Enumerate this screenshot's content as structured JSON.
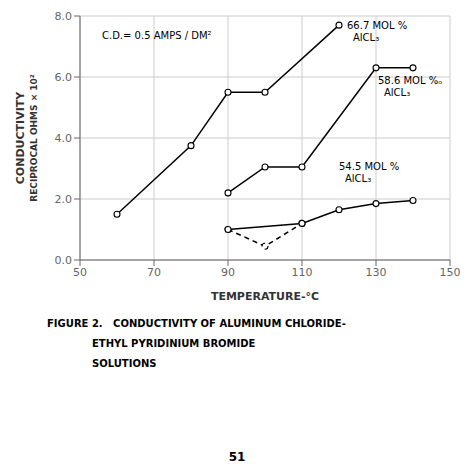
{
  "chart_data": {
    "type": "line",
    "x_label": "TEMPERATURE-°C",
    "y_label": [
      "CONDUCTIVITY",
      "RECIPROCAL OHMS × 10²"
    ],
    "annotations": [
      "C.D.= 0.5 AMPS / DM²"
    ],
    "caption": [
      "FIGURE 2.   CONDUCTIVITY OF ALUMINUM CHLORIDE-",
      "ETHYL PYRIDINIUM BROMIDE",
      "SOLUTIONS"
    ],
    "page_number": "51",
    "xlim": [
      50,
      150
    ],
    "ylim": [
      0.0,
      8.0
    ],
    "xticks": [
      50,
      70,
      90,
      110,
      130,
      150
    ],
    "yticks": [
      {
        "value": 0.0,
        "label": "0.0"
      },
      {
        "value": 2.0,
        "label": "2.0"
      },
      {
        "value": 4.0,
        "label": "4.0"
      },
      {
        "value": 6.0,
        "label": "6.0"
      },
      {
        "value": 8.0,
        "label": "8.0"
      }
    ],
    "grid": true,
    "series": [
      {
        "name": "66.7 MOL %\nAlCL₃",
        "color": "#000000",
        "marker": "circle",
        "line_style": "solid",
        "x": [
          60,
          80,
          90,
          100,
          120
        ],
        "values": [
          1.5,
          3.75,
          5.5,
          5.5,
          7.7
        ]
      },
      {
        "name": "58.6 MOL %ₒ\nAlCL₃",
        "color": "#000000",
        "marker": "circle",
        "line_style": "solid",
        "x": [
          90,
          100,
          110,
          130,
          140
        ],
        "values": [
          2.2,
          3.05,
          3.05,
          6.3,
          6.3
        ]
      },
      {
        "color": "#000000",
        "marker": "circle",
        "line_style": "dashed",
        "x": [
          90,
          100,
          110
        ],
        "values": [
          1.0,
          0.45,
          1.2
        ]
      },
      {
        "name": "54.5 MOL %\nAlCL₃",
        "color": "#000000",
        "marker": "circle",
        "line_style": "solid",
        "x": [
          90,
          110,
          120,
          130,
          140
        ],
        "values": [
          1.0,
          1.2,
          1.65,
          1.85,
          1.95
        ]
      }
    ]
  }
}
